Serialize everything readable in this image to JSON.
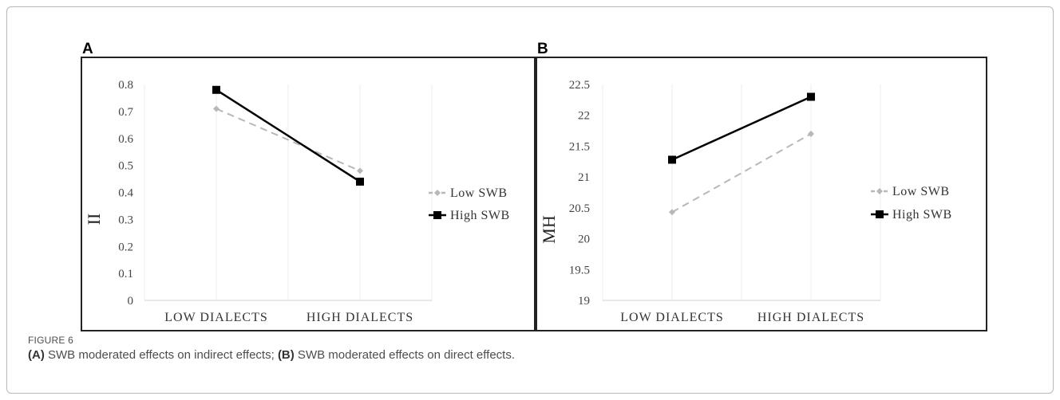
{
  "figure": {
    "label": "FIGURE 6",
    "caption_a_tag": "(A)",
    "caption_a_text": " SWB moderated effects on indirect effects;",
    "caption_b_tag": "(B)",
    "caption_b_text": " SWB moderated effects on direct effects."
  },
  "colors": {
    "low": "#b8b8b8",
    "high": "#000000",
    "grid": "#ededed",
    "axis": "#d0d0d0",
    "tick_text": "#444444"
  },
  "chart_data": [
    {
      "panel_label": "A",
      "type": "line",
      "categories": [
        "LOW DIALECTS",
        "HIGH DIALECTS"
      ],
      "ylabel": "II",
      "xlabel": "",
      "title": "",
      "ylim": [
        0,
        0.8
      ],
      "yticks": [
        "0",
        "0.1",
        "0.2",
        "0.3",
        "0.4",
        "0.5",
        "0.6",
        "0.7",
        "0.8"
      ],
      "grid": "vertical",
      "legend_position": "right",
      "series": [
        {
          "name": "Low SWB",
          "values": [
            0.71,
            0.48
          ],
          "style": "dashed",
          "marker": "diamond"
        },
        {
          "name": "High SWB",
          "values": [
            0.78,
            0.44
          ],
          "style": "solid",
          "marker": "square"
        }
      ]
    },
    {
      "panel_label": "B",
      "type": "line",
      "categories": [
        "LOW DIALECTS",
        "HIGH DIALECTS"
      ],
      "ylabel": "MH",
      "xlabel": "",
      "title": "",
      "ylim": [
        19,
        22.5
      ],
      "yticks": [
        "19",
        "19.5",
        "20",
        "20.5",
        "21",
        "21.5",
        "22",
        "22.5"
      ],
      "grid": "vertical",
      "legend_position": "right",
      "series": [
        {
          "name": "Low SWB",
          "values": [
            20.43,
            21.7
          ],
          "style": "dashed",
          "marker": "diamond"
        },
        {
          "name": "High SWB",
          "values": [
            21.28,
            22.3
          ],
          "style": "solid",
          "marker": "square"
        }
      ]
    }
  ]
}
